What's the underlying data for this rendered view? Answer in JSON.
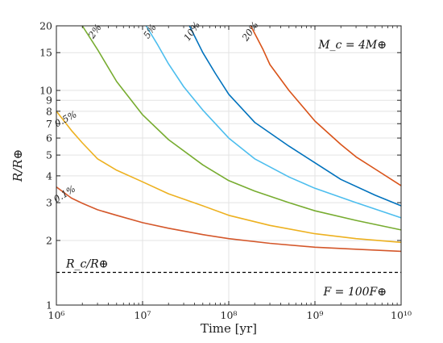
{
  "chart_data": {
    "type": "line",
    "xlabel": "Time [yr]",
    "ylabel": "R/R⊕",
    "xscale": "log",
    "yscale": "log",
    "xlim": [
      1000000,
      10000000000
    ],
    "ylim": [
      1,
      20
    ],
    "grid": true,
    "x_tick_labels": [
      "10⁶",
      "10⁷",
      "10⁸",
      "10⁹",
      "10¹⁰"
    ],
    "y_tick_labels": [
      {
        "value": 1,
        "label": "1"
      },
      {
        "value": 2,
        "label": "2"
      },
      {
        "value": 3,
        "label": "3"
      },
      {
        "value": 4,
        "label": "4"
      },
      {
        "value": 5,
        "label": "5"
      },
      {
        "value": 6,
        "label": "6"
      },
      {
        "value": 7,
        "label": "7"
      },
      {
        "value": 8,
        "label": "8"
      },
      {
        "value": 9,
        "label": "9"
      },
      {
        "value": 10,
        "label": "10"
      },
      {
        "value": 15,
        "label": "15"
      },
      {
        "value": 20,
        "label": "20"
      }
    ],
    "annotations": {
      "core_mass": "M_c = 4M⊕",
      "flux": "F = 100F⊕",
      "core_radius_label": "R_c/R⊕"
    },
    "core_radius_line": {
      "y": 1.42,
      "style": "dashed",
      "color": "#000000"
    },
    "series": [
      {
        "name": "0.1%",
        "color": "#d4572a",
        "label_at": [
          1300000,
          3.2,
          -32
        ],
        "x": [
          1000000,
          1500000,
          2000000,
          3000000,
          5000000,
          10000000,
          20000000,
          50000000,
          100000000,
          300000000,
          1000000000,
          3000000000,
          10000000000
        ],
        "y": [
          3.55,
          3.15,
          2.98,
          2.78,
          2.62,
          2.42,
          2.28,
          2.13,
          2.04,
          1.94,
          1.86,
          1.82,
          1.78
        ]
      },
      {
        "name": "0.5%",
        "color": "#edb120",
        "label_at": [
          1330000,
          7.15,
          -28
        ],
        "x": [
          1000000,
          1500000,
          2000000,
          3000000,
          5000000,
          10000000,
          20000000,
          50000000,
          100000000,
          300000000,
          1000000000,
          3000000000,
          10000000000
        ],
        "y": [
          8.0,
          6.5,
          5.7,
          4.8,
          4.25,
          3.75,
          3.3,
          2.9,
          2.62,
          2.35,
          2.15,
          2.04,
          1.96
        ]
      },
      {
        "name": "2%",
        "color": "#77ac30",
        "label_at": [
          3000000,
          18.5,
          -55
        ],
        "x": [
          2000000,
          3000000,
          5000000,
          10000000,
          20000000,
          50000000,
          100000000,
          200000000,
          500000000,
          1000000000,
          3000000000,
          10000000000
        ],
        "y": [
          20,
          15.5,
          11.0,
          7.7,
          5.9,
          4.5,
          3.8,
          3.4,
          3.0,
          2.75,
          2.48,
          2.24
        ]
      },
      {
        "name": "5%",
        "color": "#4dbeee",
        "label_at": [
          13000000,
          18.5,
          -55
        ],
        "x": [
          11000000,
          15000000,
          20000000,
          30000000,
          50000000,
          100000000,
          200000000,
          500000000,
          1000000000,
          3000000000,
          10000000000
        ],
        "y": [
          20,
          16.3,
          13.3,
          10.4,
          8.1,
          6.0,
          4.8,
          3.95,
          3.5,
          3.0,
          2.55
        ]
      },
      {
        "name": "10%",
        "color": "#0072bd",
        "label_at": [
          40000000,
          18.5,
          -55
        ],
        "x": [
          35000000,
          50000000,
          70000000,
          100000000,
          200000000,
          500000000,
          1000000000,
          2000000000,
          5000000000,
          10000000000
        ],
        "y": [
          20,
          15.0,
          12.0,
          9.6,
          7.1,
          5.5,
          4.6,
          3.85,
          3.25,
          2.9
        ]
      },
      {
        "name": "20%",
        "color": "#d95319",
        "label_at": [
          190000000,
          18.5,
          -55
        ],
        "x": [
          180000000,
          250000000,
          300000000,
          500000000,
          1000000000,
          2000000000,
          3000000000,
          5000000000,
          10000000000
        ],
        "y": [
          20,
          15.5,
          13.2,
          10.0,
          7.2,
          5.6,
          4.9,
          4.3,
          3.6
        ]
      }
    ]
  }
}
